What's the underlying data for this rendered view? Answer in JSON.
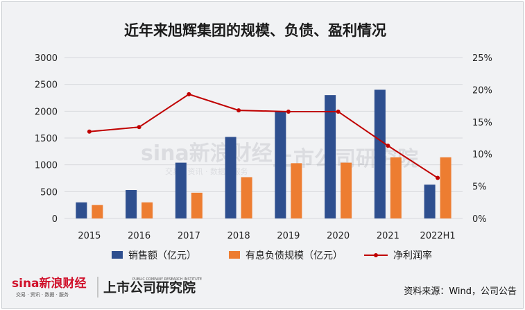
{
  "chart_data": {
    "type": "bar",
    "title": "近年来旭辉集团的规模、负债、盈利情况",
    "categories": [
      "2015",
      "2016",
      "2017",
      "2018",
      "2019",
      "2020",
      "2021",
      "2022H1"
    ],
    "series": [
      {
        "name": "销售额（亿元）",
        "kind": "bar",
        "axis": "left",
        "color": "#2e4f8f",
        "values": [
          300,
          530,
          1040,
          1520,
          2000,
          2300,
          2400,
          630
        ]
      },
      {
        "name": "有息负债规模（亿元）",
        "kind": "bar",
        "axis": "left",
        "color": "#ed7d31",
        "values": [
          250,
          300,
          480,
          770,
          1030,
          1040,
          1140,
          1140
        ]
      },
      {
        "name": "净利润率",
        "kind": "line",
        "axis": "right",
        "color": "#c00000",
        "values": [
          0.135,
          0.142,
          0.193,
          0.168,
          0.166,
          0.166,
          0.113,
          0.063
        ]
      }
    ],
    "y_left": {
      "min": 0,
      "max": 3000,
      "ticks": [
        "0",
        "500",
        "1000",
        "1500",
        "2000",
        "2500",
        "3000"
      ]
    },
    "y_right": {
      "min": 0,
      "max": 0.25,
      "ticks": [
        "0%",
        "5%",
        "10%",
        "15%",
        "20%",
        "25%"
      ]
    },
    "grid": true,
    "legend_position": "bottom"
  },
  "watermark": {
    "brand": "sina新浪财经",
    "brand_sub": "交易 · 资讯 · 数据 · 服务",
    "institute": "上市公司研究院",
    "institute_en": "PUBLIC COMPANY RESEARCH INSTITUTE"
  },
  "source_note": "资料来源：Wind，公司公告",
  "colors": {
    "background": "#f1f2f4",
    "grid": "#d6d8dc"
  }
}
